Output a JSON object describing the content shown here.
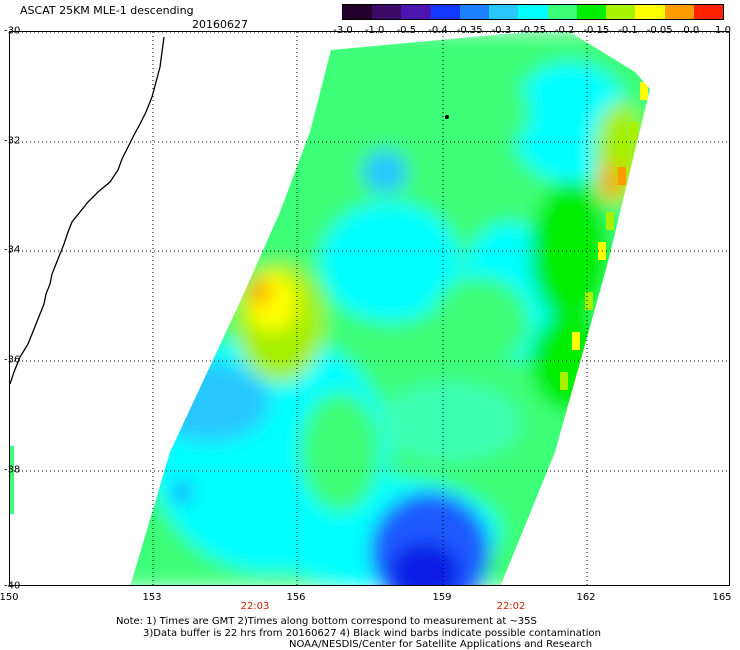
{
  "header": {
    "title": "ASCAT 25KM MLE-1 descending",
    "date": "20160627"
  },
  "colorbar": {
    "tick_labels": [
      "-3.0",
      "-1.0",
      "-0.5",
      "-0.4",
      "-0.35",
      "-0.3",
      "-0.25",
      "-0.2",
      "-0.15",
      "-0.1",
      "-0.05",
      "0.0",
      "1.0"
    ],
    "colors": [
      "#24002c",
      "#3c0a66",
      "#4a14b0",
      "#1438ff",
      "#1e82ff",
      "#28c8ff",
      "#00ffff",
      "#3cff78",
      "#00ee00",
      "#a6f000",
      "#ffff00",
      "#ff9c00",
      "#ff2200"
    ]
  },
  "map": {
    "lat_labels": [
      "-30",
      "-32",
      "-34",
      "-36",
      "-38",
      "-40"
    ],
    "lon_labels": [
      "150",
      "153",
      "156",
      "159",
      "162",
      "165"
    ],
    "times": [
      "22:03",
      "22:02"
    ],
    "land_color": "#ffffff",
    "swath_palette": {
      "deep_blue": "#0a1ee6",
      "blue": "#1e5aff",
      "light_blue": "#28c8ff",
      "cyan": "#00ffff",
      "aqua_green": "#3cffb4",
      "green": "#3cff78",
      "bright_green": "#00ee00",
      "yellow_green": "#a6f000",
      "yellow": "#ffff00",
      "orange": "#ff9c00"
    }
  },
  "notes": {
    "line1": "Note: 1) Times are GMT 2)Times along bottom correspond to measurement at ~35S",
    "line2": "3)Data buffer is 22 hrs from 20160627 4) Black wind barbs indicate possible contamination",
    "line3": "NOAA/NESDIS/Center for Satellite Applications and Research"
  }
}
